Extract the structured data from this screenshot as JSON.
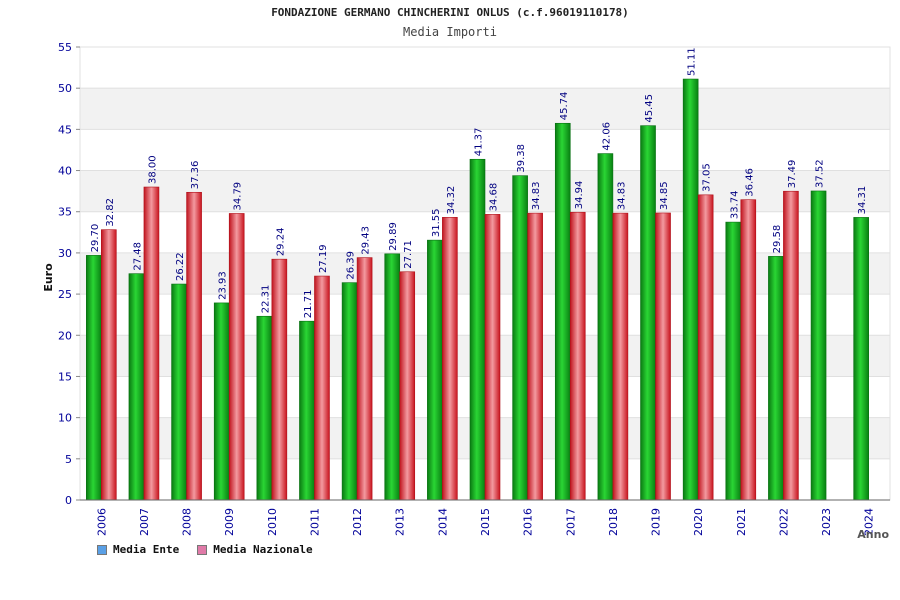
{
  "title": "FONDAZIONE GERMANO CHINCHERINI ONLUS (c.f.96019110178)",
  "subtitle": "Media Importi",
  "colors": {
    "ente": "#0fae19",
    "nazionale": "#e1323c",
    "legend_ente": "#5aa0e6",
    "legend_nazionale": "#e07aa8",
    "axis_label": "#000099",
    "value_label": "#000080"
  },
  "legend": [
    {
      "label": "Media Ente",
      "color": "#5aa0e6"
    },
    {
      "label": "Media Nazionale",
      "color": "#e07aa8"
    }
  ],
  "chart_data": {
    "type": "bar",
    "title": "FONDAZIONE GERMANO CHINCHERINI ONLUS (c.f.96019110178)",
    "subtitle": "Media Importi",
    "xlabel": "Anno",
    "ylabel": "Euro",
    "ylim": [
      0,
      55
    ],
    "yticks": [
      0,
      5,
      10,
      15,
      20,
      25,
      30,
      35,
      40,
      45,
      50,
      55
    ],
    "grid": true,
    "legend_position": "bottom-left",
    "categories": [
      "2006",
      "2007",
      "2008",
      "2009",
      "2010",
      "2011",
      "2012",
      "2013",
      "2014",
      "2015",
      "2016",
      "2017",
      "2018",
      "2019",
      "2020",
      "2021",
      "2022",
      "2023",
      "2024"
    ],
    "series": [
      {
        "name": "Media Ente",
        "values": [
          29.7,
          27.48,
          26.22,
          23.93,
          22.31,
          21.71,
          26.39,
          29.89,
          31.55,
          41.37,
          39.38,
          45.74,
          42.06,
          45.45,
          51.11,
          33.74,
          29.58,
          37.52,
          34.31
        ],
        "labels": [
          "29.70",
          "27.48",
          "26.22",
          "23.93",
          "22.31",
          "21.71",
          "26.39",
          "29.89",
          "31.55",
          "41.37",
          "39.38",
          "45.74",
          "42.06",
          "45.45",
          "51.11",
          "33.74",
          "29.58",
          "37.52",
          "34.31"
        ]
      },
      {
        "name": "Media Nazionale",
        "values": [
          32.82,
          38.0,
          37.36,
          34.79,
          29.24,
          27.19,
          29.43,
          27.71,
          34.32,
          34.68,
          34.83,
          34.94,
          34.83,
          34.85,
          37.05,
          36.46,
          37.49,
          null,
          null
        ],
        "labels": [
          "32.82",
          "38.00",
          "37.36",
          "34.79",
          "29.24",
          "27.19",
          "29.43",
          "27.71",
          "34.32",
          "34.68",
          "34.83",
          "34.94",
          "34.83",
          "34.85",
          "37.05",
          "36.46",
          "37.49",
          "",
          ""
        ]
      }
    ]
  }
}
